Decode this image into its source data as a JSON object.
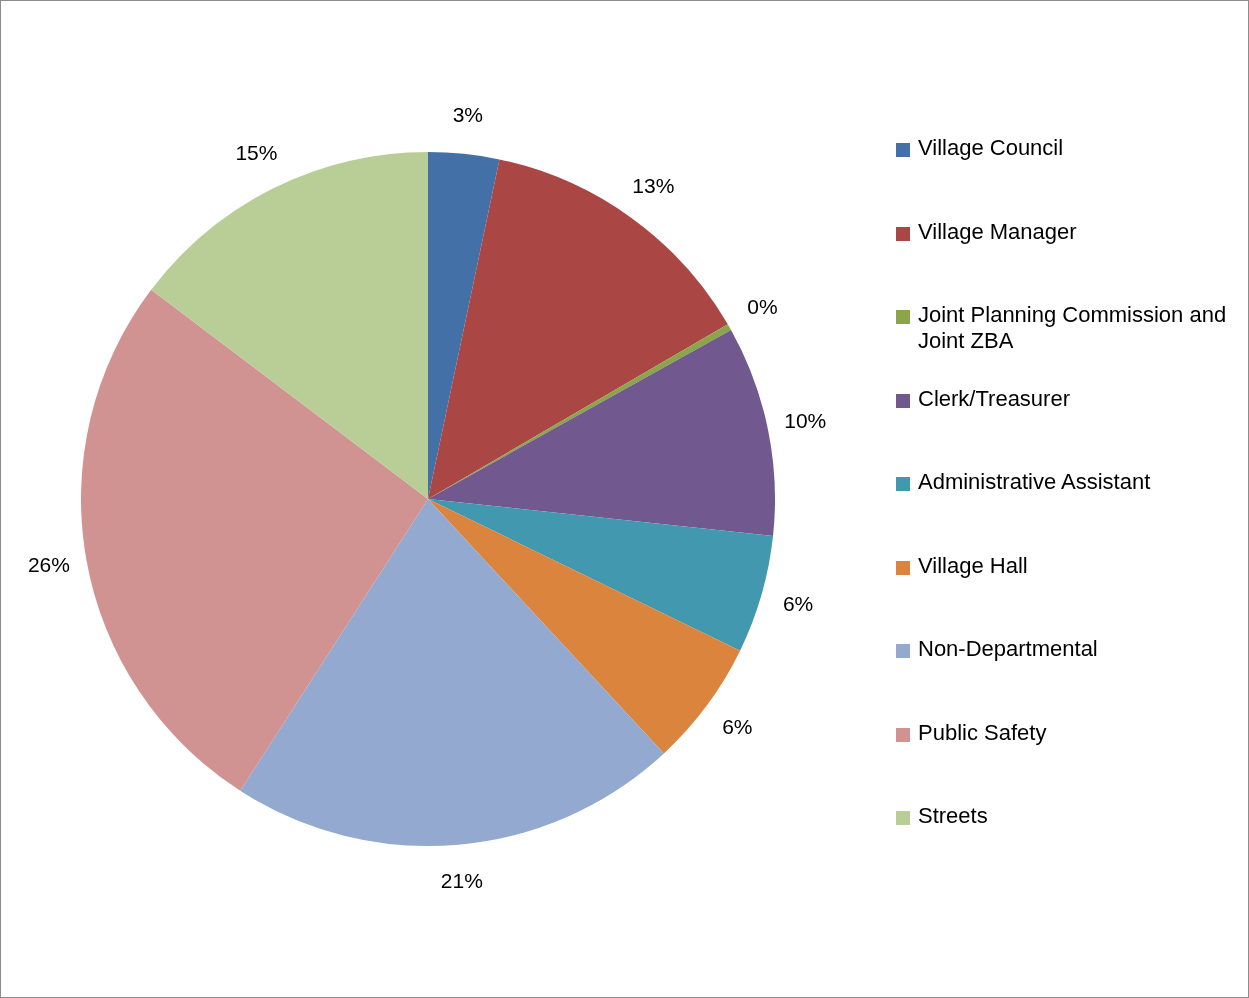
{
  "chart_data": {
    "type": "pie",
    "categories": [
      "Village Council",
      "Village Manager",
      "Joint Planning Commission and Joint ZBA",
      "Clerk/Treasurer",
      "Administrative Assistant",
      "Village Hall",
      "Non-Departmental",
      "Public Safety",
      "Streets"
    ],
    "values": [
      3.3,
      13.3,
      0.3,
      9.8,
      5.5,
      5.9,
      21.0,
      26.2,
      14.7
    ],
    "value_labels": [
      "3%",
      "13%",
      "0%",
      "10%",
      "6%",
      "6%",
      "21%",
      "26%",
      "15%"
    ],
    "colors": [
      "#4470a8",
      "#aa4644",
      "#8aa54a",
      "#71588f",
      "#4198af",
      "#db843d",
      "#93a9cf",
      "#d19392",
      "#b9cd96"
    ],
    "legend": "right"
  }
}
